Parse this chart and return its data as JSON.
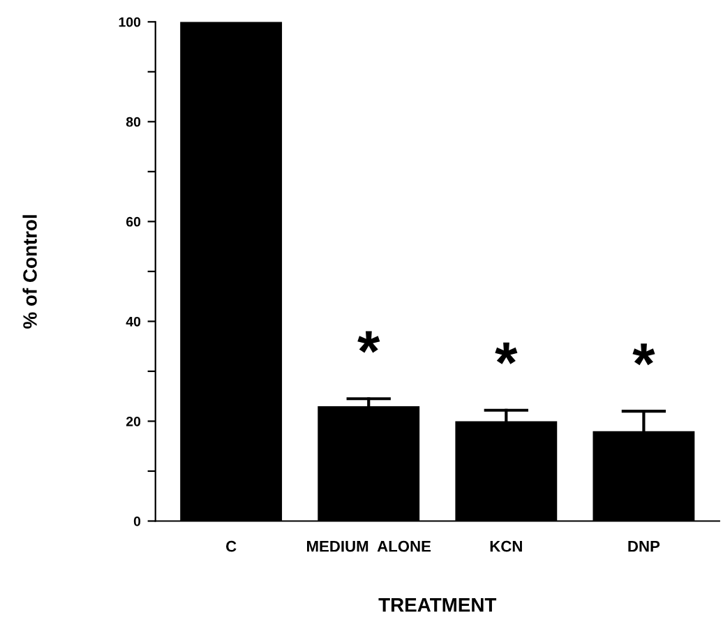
{
  "chart_data": {
    "type": "bar",
    "xlabel": "TREATMENT",
    "ylabel": "% of Control",
    "categories": [
      "C",
      "MEDIUM  ALONE",
      "KCN",
      "DNP"
    ],
    "values": [
      100,
      23,
      20,
      18
    ],
    "errors": [
      null,
      [
        23,
        24.5
      ],
      [
        20,
        22.2
      ],
      [
        18,
        22
      ]
    ],
    "color": "#000000",
    "ylim": [
      0,
      100
    ],
    "yticks": [
      0,
      {
        "value": 10,
        "label": null
      },
      20,
      {
        "value": 30,
        "label": null
      },
      40,
      {
        "value": 50,
        "label": null
      },
      60,
      {
        "value": 70,
        "label": null
      },
      80,
      {
        "value": 90,
        "label": null
      },
      100
    ],
    "annotations": [
      "*",
      "*",
      "*"
    ],
    "grid": false,
    "legend": false
  }
}
